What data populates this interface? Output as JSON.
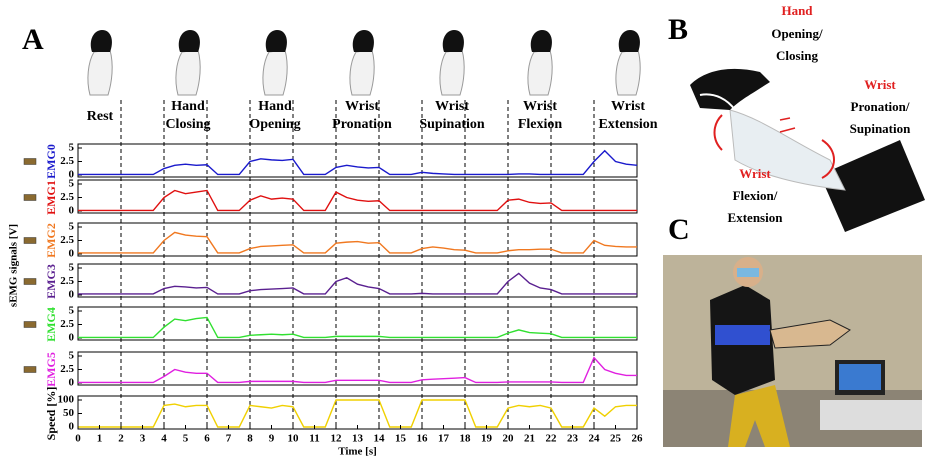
{
  "panel_labels": {
    "a": "A",
    "b": "B",
    "c": "C"
  },
  "movements": [
    [
      "Rest"
    ],
    [
      "Hand",
      "Closing"
    ],
    [
      "Hand",
      "Opening"
    ],
    [
      "Wrist",
      "Pronation"
    ],
    [
      "Wrist",
      "Supination"
    ],
    [
      "Wrist",
      "Flexion"
    ],
    [
      "Wrist",
      "Extension"
    ]
  ],
  "panel_b": {
    "hand": [
      "Hand",
      "Opening/",
      "Closing"
    ],
    "pronation": [
      "Wrist",
      "Pronation/",
      "Supination"
    ],
    "flexion": [
      "Wrist",
      "Flexion/",
      "Extension"
    ]
  },
  "chart_data": {
    "type": "line",
    "xlabel": "Time [s]",
    "ylabel": "sEMG signals [V]",
    "xlim": [
      0,
      26
    ],
    "xticks": [
      0,
      1,
      2,
      3,
      4,
      5,
      6,
      7,
      8,
      9,
      10,
      11,
      12,
      13,
      14,
      15,
      16,
      17,
      18,
      19,
      20,
      21,
      22,
      23,
      24,
      25,
      26
    ],
    "vlines": [
      2,
      4,
      6,
      8,
      10,
      12,
      14,
      16,
      18,
      20,
      22,
      24
    ],
    "x": [
      0,
      0.5,
      1,
      1.5,
      2,
      2.5,
      3,
      3.5,
      4,
      4.5,
      5,
      5.5,
      6,
      6.5,
      7,
      7.5,
      8,
      8.5,
      9,
      9.5,
      10,
      10.5,
      11,
      11.5,
      12,
      12.5,
      13,
      13.5,
      14,
      14.5,
      15,
      15.5,
      16,
      16.5,
      17,
      17.5,
      18,
      18.5,
      19,
      19.5,
      20,
      20.5,
      21,
      21.5,
      22,
      22.5,
      23,
      23.5,
      24,
      24.5,
      25,
      25.5,
      26
    ],
    "series": [
      {
        "name": "EMG0",
        "color": "#1a1acc",
        "ylim": [
          0,
          5
        ],
        "yticks": [
          0,
          2.5,
          5
        ],
        "values": [
          0.1,
          0.1,
          0.1,
          0.1,
          0.1,
          0.1,
          0.1,
          0.1,
          1.2,
          1.8,
          2.0,
          1.8,
          1.9,
          0.1,
          0.1,
          0.1,
          2.5,
          3.0,
          2.8,
          2.7,
          2.9,
          0.1,
          0.1,
          0.1,
          1.4,
          1.8,
          1.5,
          1.3,
          1.4,
          0.1,
          0.1,
          0.1,
          0.5,
          0.3,
          0.2,
          0.1,
          0.1,
          0.1,
          0.1,
          0.1,
          0.1,
          0.2,
          0.2,
          0.1,
          0.1,
          0.1,
          0.1,
          0.1,
          2.5,
          4.5,
          2.5,
          2.0,
          1.8
        ]
      },
      {
        "name": "EMG1",
        "color": "#e01010",
        "ylim": [
          0,
          5
        ],
        "yticks": [
          0,
          2.5,
          5
        ],
        "values": [
          0.1,
          0.1,
          0.1,
          0.1,
          0.1,
          0.1,
          0.1,
          0.1,
          2.5,
          3.8,
          3.2,
          3.5,
          3.8,
          0.1,
          0.1,
          0.1,
          2.0,
          2.8,
          2.2,
          2.4,
          2.2,
          0.1,
          0.1,
          0.1,
          3.5,
          2.5,
          2.0,
          1.8,
          1.9,
          0.1,
          0.1,
          0.1,
          0.1,
          0.1,
          0.1,
          0.1,
          0.1,
          0.1,
          0.1,
          0.1,
          2.0,
          2.2,
          1.6,
          1.4,
          1.5,
          0.1,
          0.1,
          0.1,
          0.1,
          0.1,
          0.1,
          0.1,
          0.1
        ]
      },
      {
        "name": "EMG2",
        "color": "#f07820",
        "ylim": [
          0,
          5
        ],
        "yticks": [
          0,
          2.5,
          5
        ],
        "values": [
          0.2,
          0.2,
          0.2,
          0.2,
          0.2,
          0.2,
          0.2,
          0.2,
          2.5,
          4.0,
          3.5,
          3.3,
          3.2,
          0.2,
          0.2,
          0.2,
          1.0,
          1.4,
          1.5,
          1.6,
          1.7,
          0.2,
          0.2,
          0.2,
          2.0,
          2.2,
          2.3,
          2.0,
          2.1,
          0.2,
          0.2,
          0.2,
          1.0,
          1.3,
          1.1,
          0.8,
          0.7,
          0.2,
          0.2,
          0.2,
          0.6,
          0.8,
          0.8,
          0.9,
          0.9,
          0.2,
          0.2,
          0.2,
          2.5,
          1.6,
          1.4,
          1.3,
          1.3
        ]
      },
      {
        "name": "EMG3",
        "color": "#5a2090",
        "ylim": [
          0,
          5
        ],
        "yticks": [
          0,
          2.5,
          5
        ],
        "values": [
          0.2,
          0.2,
          0.2,
          0.2,
          0.2,
          0.2,
          0.2,
          0.2,
          1.2,
          1.6,
          1.5,
          1.3,
          1.4,
          0.2,
          0.2,
          0.2,
          0.8,
          1.0,
          1.1,
          1.2,
          1.3,
          0.2,
          0.2,
          0.2,
          2.5,
          3.2,
          2.0,
          1.5,
          1.2,
          0.2,
          0.2,
          0.2,
          0.3,
          0.2,
          0.2,
          0.2,
          0.2,
          0.2,
          0.2,
          0.2,
          2.5,
          4.0,
          2.2,
          1.3,
          1.0,
          0.2,
          0.2,
          0.2,
          0.2,
          0.2,
          0.2,
          0.2,
          0.2
        ]
      },
      {
        "name": "EMG4",
        "color": "#30e030",
        "ylim": [
          0,
          5
        ],
        "yticks": [
          0,
          2.5,
          5
        ],
        "values": [
          0.1,
          0.1,
          0.1,
          0.1,
          0.1,
          0.1,
          0.1,
          0.1,
          2.0,
          3.5,
          3.2,
          3.6,
          3.8,
          0.1,
          0.1,
          0.1,
          0.5,
          0.6,
          0.7,
          0.6,
          0.7,
          0.1,
          0.1,
          0.1,
          0.3,
          0.3,
          0.3,
          0.3,
          0.3,
          0.1,
          0.1,
          0.1,
          0.1,
          0.1,
          0.1,
          0.1,
          0.1,
          0.1,
          0.1,
          0.1,
          0.9,
          1.5,
          1.0,
          0.9,
          0.8,
          0.1,
          0.1,
          0.1,
          0.1,
          0.1,
          0.1,
          0.1,
          0.1
        ]
      },
      {
        "name": "EMG5",
        "color": "#e020e0",
        "ylim": [
          0,
          5
        ],
        "yticks": [
          0,
          2.5,
          5
        ],
        "values": [
          0.1,
          0.1,
          0.1,
          0.1,
          0.1,
          0.1,
          0.1,
          0.1,
          1.2,
          2.5,
          2.0,
          1.8,
          1.8,
          0.1,
          0.1,
          0.1,
          0.3,
          0.3,
          0.3,
          0.3,
          0.3,
          0.1,
          0.1,
          0.1,
          0.5,
          0.5,
          0.5,
          0.5,
          0.5,
          0.1,
          0.1,
          0.1,
          0.6,
          0.7,
          0.8,
          0.9,
          1.0,
          0.1,
          0.1,
          0.1,
          0.2,
          0.2,
          0.2,
          0.2,
          0.2,
          0.1,
          0.1,
          0.1,
          4.7,
          2.5,
          1.8,
          1.4,
          1.4
        ]
      },
      {
        "name": "Speed [%]",
        "color": "#f0d000",
        "name_color": "#000000",
        "ylim": [
          0,
          100
        ],
        "yticks": [
          0,
          50,
          100
        ],
        "values": [
          0,
          0,
          0,
          0,
          0,
          0,
          0,
          0,
          80,
          85,
          75,
          80,
          80,
          0,
          0,
          0,
          80,
          75,
          70,
          80,
          75,
          0,
          0,
          0,
          100,
          100,
          100,
          100,
          100,
          0,
          0,
          0,
          100,
          100,
          100,
          100,
          100,
          0,
          0,
          0,
          70,
          80,
          75,
          80,
          70,
          0,
          0,
          0,
          70,
          40,
          75,
          80,
          80
        ]
      }
    ]
  }
}
